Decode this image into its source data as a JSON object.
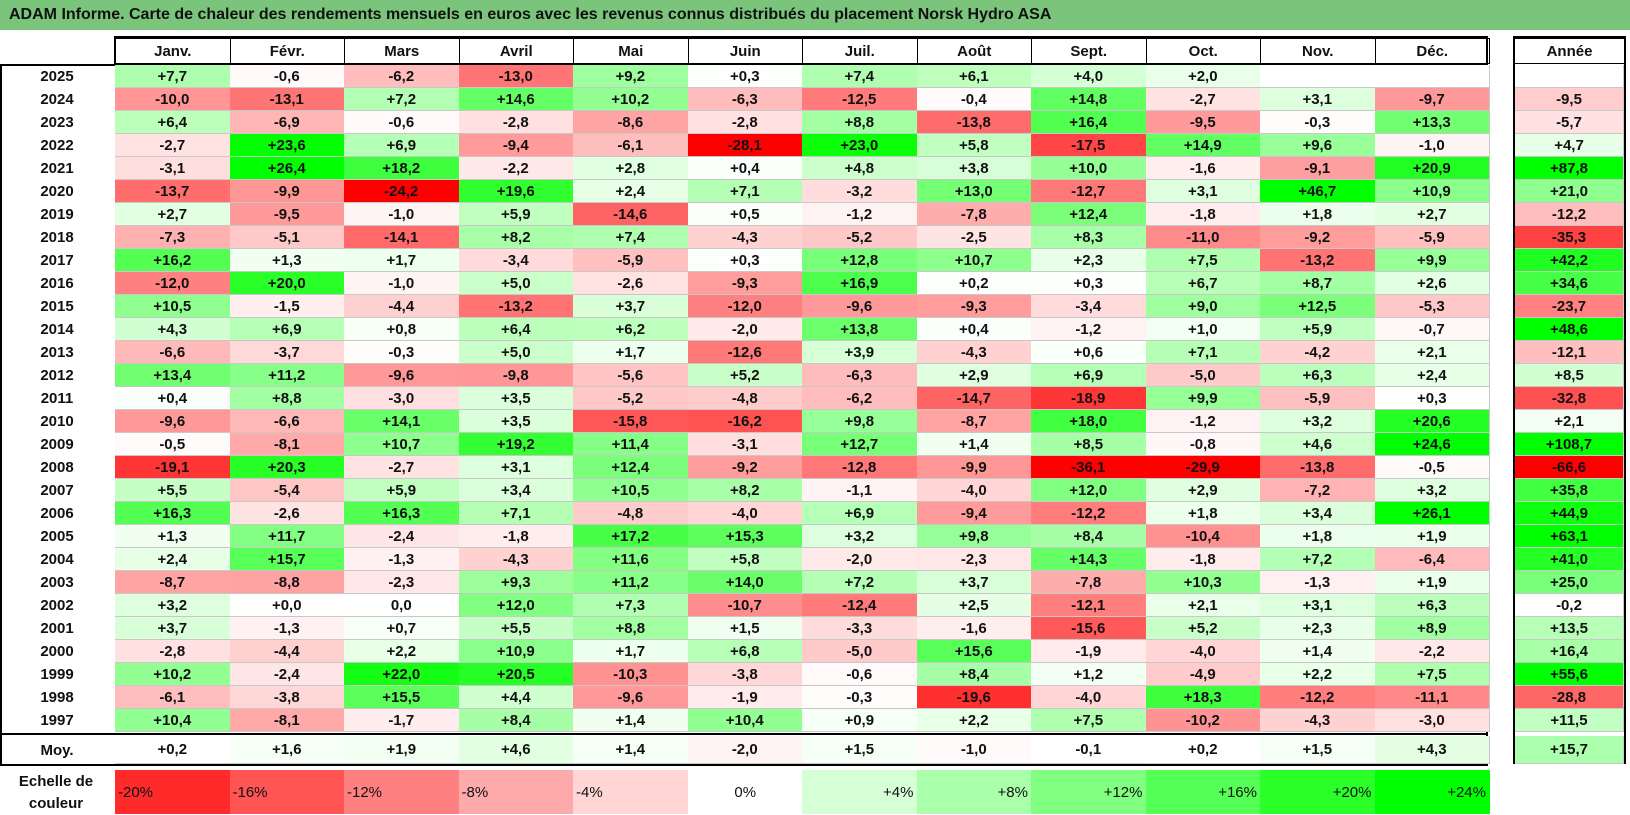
{
  "title": "ADAM Informe. Carte de chaleur des rendements mensuels en euros avec les revenus connus distribués du placement Norsk Hydro ASA",
  "chart_data": {
    "type": "heatmap",
    "columns": [
      "Janv.",
      "Févr.",
      "Mars",
      "Avril",
      "Mai",
      "Juin",
      "Juil.",
      "Août",
      "Sept.",
      "Oct.",
      "Nov.",
      "Déc."
    ],
    "year_header": "Année",
    "rows": [
      {
        "label": "2025",
        "values": [
          "+7,7",
          "-0,6",
          "-6,2",
          "-13,0",
          "+9,2",
          "+0,3",
          "+7,4",
          "+6,1",
          "+4,0",
          "+2,0",
          "",
          ""
        ],
        "annual": ""
      },
      {
        "label": "2024",
        "values": [
          "-10,0",
          "-13,1",
          "+7,2",
          "+14,6",
          "+10,2",
          "-6,3",
          "-12,5",
          "-0,4",
          "+14,8",
          "-2,7",
          "+3,1",
          "-9,7"
        ],
        "annual": "-9,5"
      },
      {
        "label": "2023",
        "values": [
          "+6,4",
          "-6,9",
          "-0,6",
          "-2,8",
          "-8,6",
          "-2,8",
          "+8,8",
          "-13,8",
          "+16,4",
          "-9,5",
          "-0,3",
          "+13,3"
        ],
        "annual": "-5,7"
      },
      {
        "label": "2022",
        "values": [
          "-2,7",
          "+23,6",
          "+6,9",
          "-9,4",
          "-6,1",
          "-28,1",
          "+23,0",
          "+5,8",
          "-17,5",
          "+14,9",
          "+9,6",
          "-1,0"
        ],
        "annual": "+4,7"
      },
      {
        "label": "2021",
        "values": [
          "-3,1",
          "+26,4",
          "+18,2",
          "-2,2",
          "+2,8",
          "+0,4",
          "+4,8",
          "+3,8",
          "+10,0",
          "-1,6",
          "-9,1",
          "+20,9"
        ],
        "annual": "+87,8"
      },
      {
        "label": "2020",
        "values": [
          "-13,7",
          "-9,9",
          "-24,2",
          "+19,6",
          "+2,4",
          "+7,1",
          "-3,2",
          "+13,0",
          "-12,7",
          "+3,1",
          "+46,7",
          "+10,9"
        ],
        "annual": "+21,0"
      },
      {
        "label": "2019",
        "values": [
          "+2,7",
          "-9,5",
          "-1,0",
          "+5,9",
          "-14,6",
          "+0,5",
          "-1,2",
          "-7,8",
          "+12,4",
          "-1,8",
          "+1,8",
          "+2,7"
        ],
        "annual": "-12,2"
      },
      {
        "label": "2018",
        "values": [
          "-7,3",
          "-5,1",
          "-14,1",
          "+8,2",
          "+7,4",
          "-4,3",
          "-5,2",
          "-2,5",
          "+8,3",
          "-11,0",
          "-9,2",
          "-5,9"
        ],
        "annual": "-35,3"
      },
      {
        "label": "2017",
        "values": [
          "+16,2",
          "+1,3",
          "+1,7",
          "-3,4",
          "-5,9",
          "+0,3",
          "+12,8",
          "+10,7",
          "+2,3",
          "+7,5",
          "-13,2",
          "+9,9"
        ],
        "annual": "+42,2"
      },
      {
        "label": "2016",
        "values": [
          "-12,0",
          "+20,0",
          "-1,0",
          "+5,0",
          "-2,6",
          "-9,3",
          "+16,9",
          "+0,2",
          "+0,3",
          "+6,7",
          "+8,7",
          "+2,6"
        ],
        "annual": "+34,6"
      },
      {
        "label": "2015",
        "values": [
          "+10,5",
          "-1,5",
          "-4,4",
          "-13,2",
          "+3,7",
          "-12,0",
          "-9,6",
          "-9,3",
          "-3,4",
          "+9,0",
          "+12,5",
          "-5,3"
        ],
        "annual": "-23,7"
      },
      {
        "label": "2014",
        "values": [
          "+4,3",
          "+6,9",
          "+0,8",
          "+6,4",
          "+6,2",
          "-2,0",
          "+13,8",
          "+0,4",
          "-1,2",
          "+1,0",
          "+5,9",
          "-0,7"
        ],
        "annual": "+48,6"
      },
      {
        "label": "2013",
        "values": [
          "-6,6",
          "-3,7",
          "-0,3",
          "+5,0",
          "+1,7",
          "-12,6",
          "+3,9",
          "-4,3",
          "+0,6",
          "+7,1",
          "-4,2",
          "+2,1"
        ],
        "annual": "-12,1"
      },
      {
        "label": "2012",
        "values": [
          "+13,4",
          "+11,2",
          "-9,6",
          "-9,8",
          "-5,6",
          "+5,2",
          "-6,3",
          "+2,9",
          "+6,9",
          "-5,0",
          "+6,3",
          "+2,4"
        ],
        "annual": "+8,5"
      },
      {
        "label": "2011",
        "values": [
          "+0,4",
          "+8,8",
          "-3,0",
          "+3,5",
          "-5,2",
          "-4,8",
          "-6,2",
          "-14,7",
          "-18,9",
          "+9,9",
          "-5,9",
          "+0,3"
        ],
        "annual": "-32,8"
      },
      {
        "label": "2010",
        "values": [
          "-9,6",
          "-6,6",
          "+14,1",
          "+3,5",
          "-15,8",
          "-16,2",
          "+9,8",
          "-8,7",
          "+18,0",
          "-1,2",
          "+3,2",
          "+20,6"
        ],
        "annual": "+2,1"
      },
      {
        "label": "2009",
        "values": [
          "-0,5",
          "-8,1",
          "+10,7",
          "+19,2",
          "+11,4",
          "-3,1",
          "+12,7",
          "+1,4",
          "+8,5",
          "-0,8",
          "+4,6",
          "+24,6"
        ],
        "annual": "+108,7"
      },
      {
        "label": "2008",
        "values": [
          "-19,1",
          "+20,3",
          "-2,7",
          "+3,1",
          "+12,4",
          "-9,2",
          "-12,8",
          "-9,9",
          "-36,1",
          "-29,9",
          "-13,8",
          "-0,5"
        ],
        "annual": "-66,6"
      },
      {
        "label": "2007",
        "values": [
          "+5,5",
          "-5,4",
          "+5,9",
          "+3,4",
          "+10,5",
          "+8,2",
          "-1,1",
          "-4,0",
          "+12,0",
          "+2,9",
          "-7,2",
          "+3,2"
        ],
        "annual": "+35,8"
      },
      {
        "label": "2006",
        "values": [
          "+16,3",
          "-2,6",
          "+16,3",
          "+7,1",
          "-4,8",
          "-4,0",
          "+6,9",
          "-9,4",
          "-12,2",
          "+1,8",
          "+3,4",
          "+26,1"
        ],
        "annual": "+44,9"
      },
      {
        "label": "2005",
        "values": [
          "+1,3",
          "+11,7",
          "-2,4",
          "-1,8",
          "+17,2",
          "+15,3",
          "+3,2",
          "+9,8",
          "+8,4",
          "-10,4",
          "+1,8",
          "+1,9"
        ],
        "annual": "+63,1"
      },
      {
        "label": "2004",
        "values": [
          "+2,4",
          "+15,7",
          "-1,3",
          "-4,3",
          "+11,6",
          "+5,8",
          "-2,0",
          "-2,3",
          "+14,3",
          "-1,8",
          "+7,2",
          "-6,4"
        ],
        "annual": "+41,0"
      },
      {
        "label": "2003",
        "values": [
          "-8,7",
          "-8,8",
          "-2,3",
          "+9,3",
          "+11,2",
          "+14,0",
          "+7,2",
          "+3,7",
          "-7,8",
          "+10,3",
          "-1,3",
          "+1,9"
        ],
        "annual": "+25,0"
      },
      {
        "label": "2002",
        "values": [
          "+3,2",
          "+0,0",
          "0,0",
          "+12,0",
          "+7,3",
          "-10,7",
          "-12,4",
          "+2,5",
          "-12,1",
          "+2,1",
          "+3,1",
          "+6,3"
        ],
        "annual": "-0,2"
      },
      {
        "label": "2001",
        "values": [
          "+3,7",
          "-1,3",
          "+0,7",
          "+5,5",
          "+8,8",
          "+1,5",
          "-3,3",
          "-1,6",
          "-15,6",
          "+5,2",
          "+2,3",
          "+8,9"
        ],
        "annual": "+13,5"
      },
      {
        "label": "2000",
        "values": [
          "-2,8",
          "-4,4",
          "+2,2",
          "+10,9",
          "+1,7",
          "+6,8",
          "-5,0",
          "+15,6",
          "-1,9",
          "-4,0",
          "+1,4",
          "-2,2"
        ],
        "annual": "+16,4"
      },
      {
        "label": "1999",
        "values": [
          "+10,2",
          "-2,4",
          "+22,0",
          "+20,5",
          "-10,3",
          "-3,8",
          "-0,6",
          "+8,4",
          "+1,2",
          "-4,9",
          "+2,2",
          "+7,5"
        ],
        "annual": "+55,6"
      },
      {
        "label": "1998",
        "values": [
          "-6,1",
          "-3,8",
          "+15,5",
          "+4,4",
          "-9,6",
          "-1,9",
          "-0,3",
          "-19,6",
          "-4,0",
          "+18,3",
          "-12,2",
          "-11,1"
        ],
        "annual": "-28,8"
      },
      {
        "label": "1997",
        "values": [
          "+10,4",
          "-8,1",
          "-1,7",
          "+8,4",
          "+1,4",
          "+10,4",
          "+0,9",
          "+2,2",
          "+7,5",
          "-10,2",
          "-4,3",
          "-3,0"
        ],
        "annual": "+11,5"
      }
    ],
    "average": {
      "label": "Moy.",
      "values": [
        "+0,2",
        "+1,6",
        "+1,9",
        "+4,6",
        "+1,4",
        "-2,0",
        "+1,5",
        "-1,0",
        "-0,1",
        "+0,2",
        "+1,5",
        "+4,3"
      ],
      "annual": "+15,7"
    },
    "color_scale": {
      "label": "Echelle de couleur",
      "stops": [
        {
          "label": "-20%",
          "value": -20
        },
        {
          "label": "-16%",
          "value": -16
        },
        {
          "label": "-12%",
          "value": -12
        },
        {
          "label": "-8%",
          "value": -8
        },
        {
          "label": "-4%",
          "value": -4
        },
        {
          "label": "0%",
          "value": 0
        },
        {
          "label": "+4%",
          "value": 4
        },
        {
          "label": "+8%",
          "value": 8
        },
        {
          "label": "+12%",
          "value": 12
        },
        {
          "label": "+16%",
          "value": 16
        },
        {
          "label": "+20%",
          "value": 20
        },
        {
          "label": "+24%",
          "value": 24
        }
      ],
      "negative_color": "#ff0000",
      "positive_color": "#00ff00",
      "neutral_color": "#ffffff"
    }
  }
}
